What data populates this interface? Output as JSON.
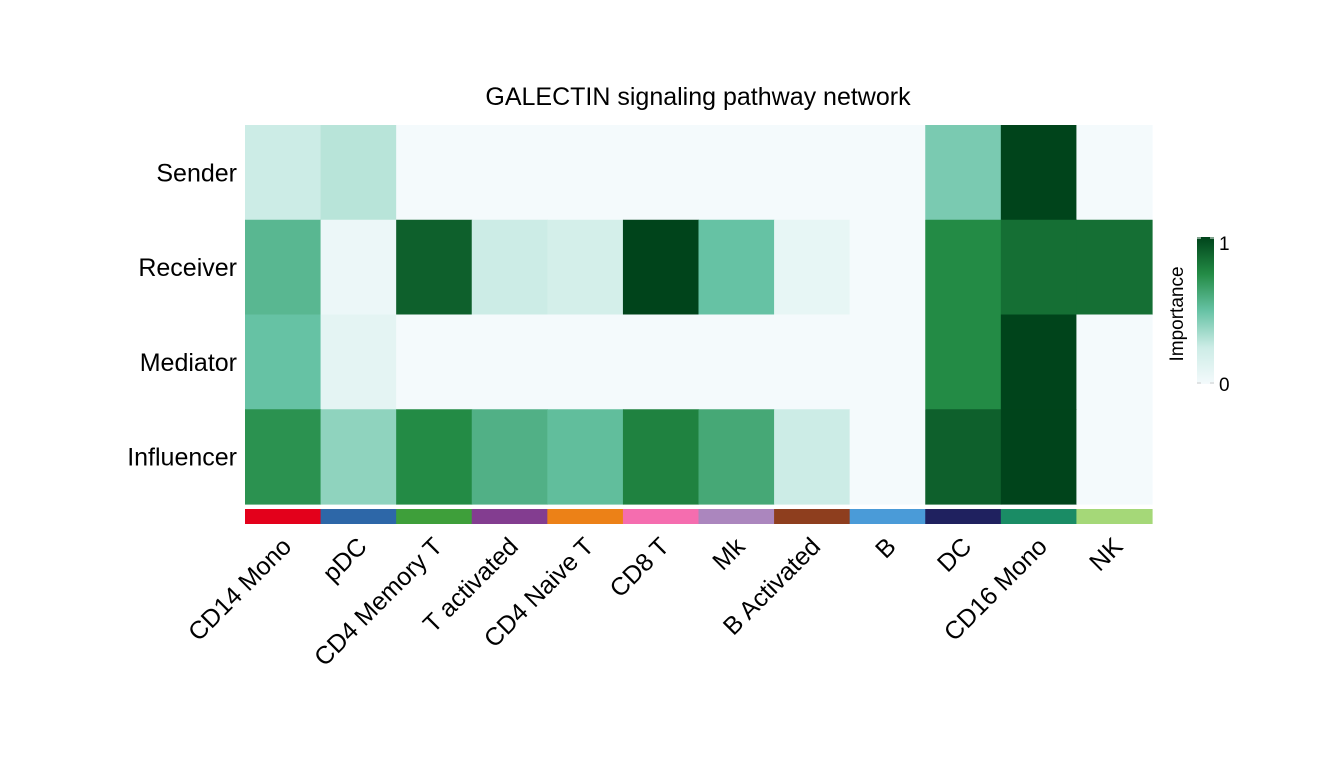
{
  "chart_data": {
    "type": "heatmap",
    "title": "GALECTIN signaling pathway network",
    "rows": [
      "Sender",
      "Receiver",
      "Mediator",
      "Influencer"
    ],
    "columns": [
      "CD14 Mono",
      "pDC",
      "CD4 Memory T",
      "T activated",
      "CD4 Naive T",
      "CD8 T",
      "Mk",
      "B Activated",
      "B",
      "DC",
      "CD16 Mono",
      "NK"
    ],
    "values": [
      [
        0.25,
        0.3,
        0.0,
        0.0,
        0.0,
        0.0,
        0.0,
        0.0,
        0.0,
        0.45,
        1.0,
        0.0
      ],
      [
        0.55,
        0.05,
        0.9,
        0.25,
        0.2,
        1.0,
        0.5,
        0.08,
        0.0,
        0.75,
        0.85,
        0.85
      ],
      [
        0.5,
        0.1,
        0.0,
        0.0,
        0.0,
        0.0,
        0.0,
        0.0,
        0.0,
        0.75,
        1.0,
        0.0
      ],
      [
        0.72,
        0.4,
        0.75,
        0.58,
        0.52,
        0.78,
        0.62,
        0.25,
        0.0,
        0.9,
        1.0,
        0.0
      ]
    ],
    "column_colors": [
      "#E3001B",
      "#2D67A8",
      "#3E9F3A",
      "#833D90",
      "#EC8117",
      "#F56DAF",
      "#AB86BE",
      "#8E3E1E",
      "#4A9BD8",
      "#1F215F",
      "#1A8C65",
      "#A5D878"
    ],
    "color_scale": {
      "min": 0,
      "max": 1,
      "colors": [
        "#F4FAFC",
        "#CCECE6",
        "#66C2A4",
        "#238B45",
        "#00441B"
      ]
    },
    "legend": {
      "title": "Importance",
      "ticks": [
        "0",
        "1"
      ],
      "placement": "right"
    }
  }
}
